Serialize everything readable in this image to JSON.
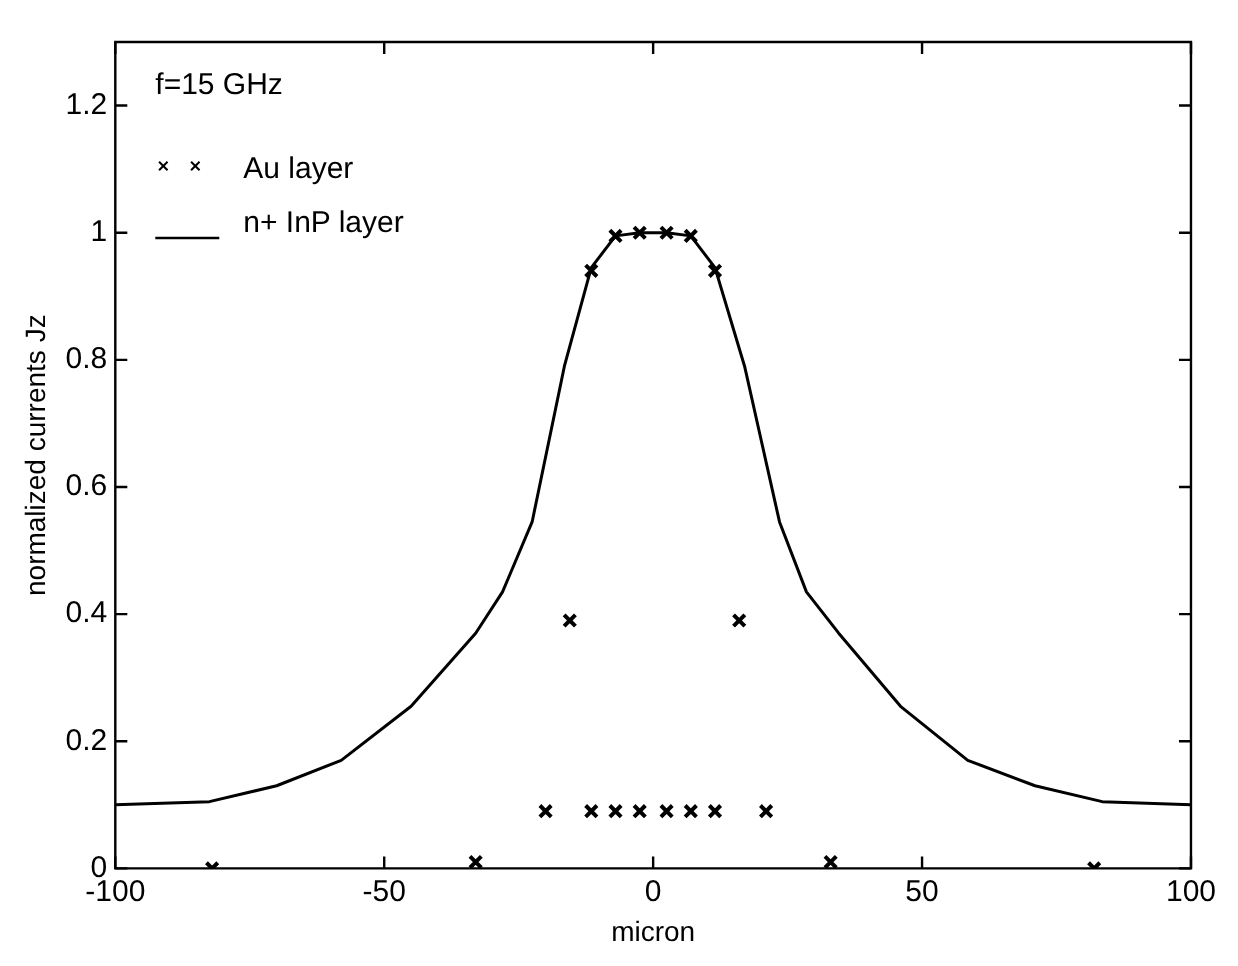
{
  "chart_data": {
    "type": "scatter",
    "xlabel": "micron",
    "ylabel": "normalized currents Jz",
    "legend_title": "f=15 GHz",
    "legend": "top left",
    "grid": false,
    "xlim": [
      -100,
      100
    ],
    "xticks": [
      -100,
      -50,
      0,
      50,
      100
    ],
    "ylim": [
      0,
      1.3
    ],
    "yticks": [
      0,
      0.2,
      0.4,
      0.6,
      0.8,
      1,
      1.2
    ],
    "series": [
      {
        "name": "Au layer",
        "marker": "cross",
        "color": "#000000",
        "x": [
          -82,
          -33,
          -20,
          -15.5,
          -11.5,
          -7,
          -2.5,
          2.5,
          7,
          11.5,
          -11.5,
          -7,
          -2.5,
          2.5,
          7,
          11.5,
          16,
          21,
          33,
          82
        ],
        "values": [
          0,
          0.01,
          0.09,
          0.39,
          0.09,
          0.09,
          0.09,
          0.09,
          0.09,
          0.09,
          0.94,
          0.995,
          1.0,
          1.0,
          0.995,
          0.94,
          0.39,
          0.09,
          0.01,
          0
        ]
      },
      {
        "name": "n+ InP layer",
        "type": "line",
        "marker": "none",
        "line_style": "solid",
        "color": "#000000",
        "x": [
          -100,
          -82.5,
          -70,
          -58,
          -45,
          -33,
          -28,
          -22.5,
          -16.5,
          -11.5,
          -7,
          -2.5,
          2.5,
          7,
          11.5,
          17,
          23.5,
          28.5,
          34.5,
          46,
          58.5,
          71,
          83.5,
          100
        ],
        "values": [
          0.1,
          0.105,
          0.13,
          0.17,
          0.255,
          0.37,
          0.435,
          0.545,
          0.79,
          0.945,
          0.995,
          1.0,
          1.0,
          0.995,
          0.945,
          0.79,
          0.545,
          0.435,
          0.37,
          0.255,
          0.17,
          0.13,
          0.105,
          0.1
        ]
      }
    ]
  }
}
